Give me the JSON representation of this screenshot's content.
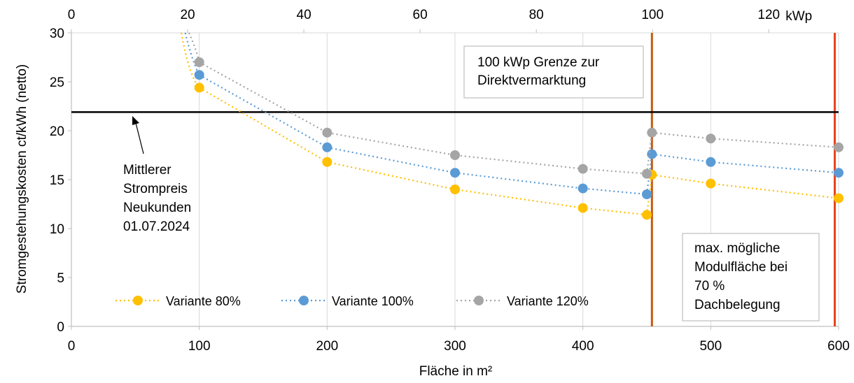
{
  "chart_data": {
    "type": "line",
    "xlabel": "Fläche in m²",
    "ylabel": "Stromgestehungskosten ct/kWh (netto)",
    "xlim": [
      0,
      600
    ],
    "ylim": [
      0,
      30
    ],
    "x_ticks": [
      0,
      100,
      200,
      300,
      400,
      500,
      600
    ],
    "y_ticks": [
      0,
      5,
      10,
      15,
      20,
      25,
      30
    ],
    "secondary_x": {
      "ticks": [
        0,
        20,
        40,
        60,
        80,
        100,
        120
      ],
      "unit": "kWp",
      "area_per_kwp": 4.545
    },
    "series": [
      {
        "name": "Variante 80%",
        "color": "#FFC000",
        "points": [
          [
            100,
            24.4
          ],
          [
            200,
            16.8
          ],
          [
            300,
            14.0
          ],
          [
            400,
            12.1
          ],
          [
            450,
            11.4
          ],
          [
            454,
            15.5
          ],
          [
            500,
            14.6
          ],
          [
            600,
            13.1
          ]
        ],
        "curve_start": [
          86,
          30.0
        ],
        "break_after_index": 4
      },
      {
        "name": "Variante 100%",
        "color": "#5B9BD5",
        "points": [
          [
            100,
            25.7
          ],
          [
            200,
            18.3
          ],
          [
            300,
            15.7
          ],
          [
            400,
            14.1
          ],
          [
            450,
            13.5
          ],
          [
            454,
            17.6
          ],
          [
            500,
            16.8
          ],
          [
            600,
            15.7
          ]
        ],
        "curve_start": [
          89,
          30.0
        ],
        "break_after_index": 4
      },
      {
        "name": "Variante 120%",
        "color": "#A5A5A5",
        "points": [
          [
            100,
            27.0
          ],
          [
            200,
            19.8
          ],
          [
            300,
            17.5
          ],
          [
            400,
            16.1
          ],
          [
            450,
            15.6
          ],
          [
            454,
            19.8
          ],
          [
            500,
            19.2
          ],
          [
            600,
            18.3
          ]
        ],
        "curve_start": [
          92,
          30.0
        ],
        "break_after_index": 4
      }
    ],
    "reference_line": {
      "y": 21.9,
      "color": "#000000"
    },
    "vertical_lines": [
      {
        "x": 454,
        "color": "#C55A11"
      },
      {
        "x": 597,
        "color": "#E8431E"
      }
    ],
    "annotations": {
      "direktvermarktung": [
        "100 kWp Grenze zur",
        "Direktvermarktung"
      ],
      "strompreis": [
        "Mittlerer",
        "Strompreis",
        "Neukunden",
        "01.07.2024"
      ],
      "modulflaeche": [
        "max. mögliche",
        "Modulfläche bei",
        "70 %",
        "Dachbelegung"
      ]
    },
    "legend": "bottom-left"
  }
}
